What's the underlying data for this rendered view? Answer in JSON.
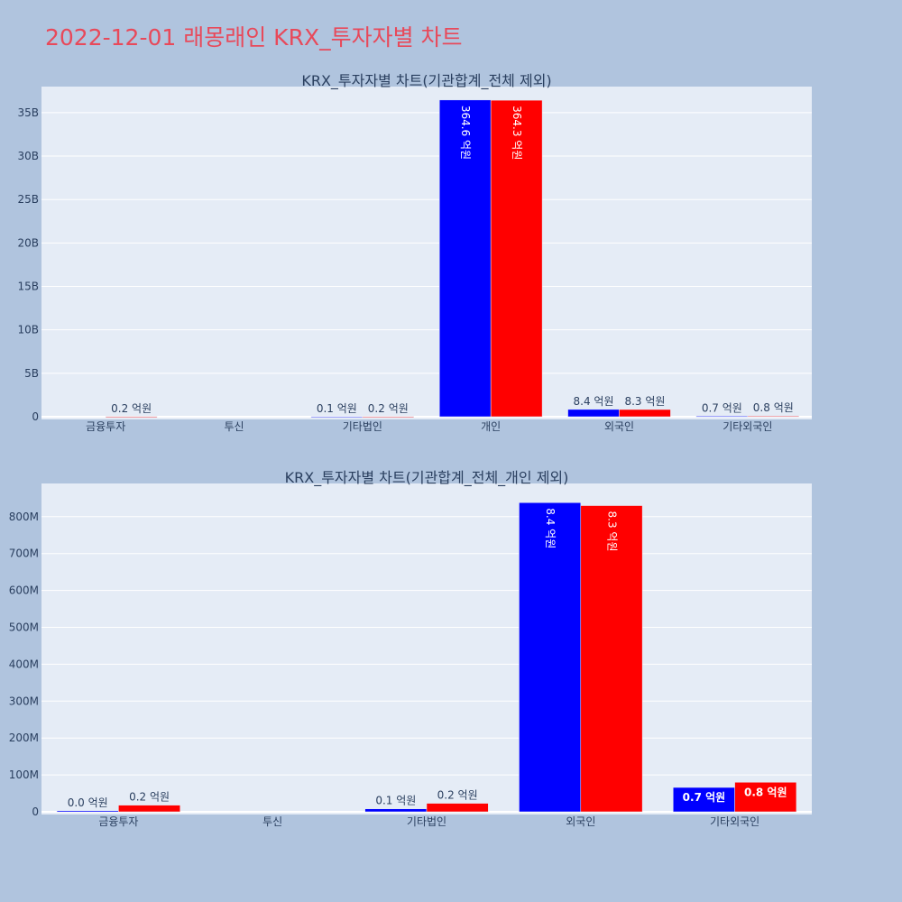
{
  "page": {
    "title": "2022-12-01 래몽래인 KRX_투자자별 차트"
  },
  "colors": {
    "series_a": "#0000ff",
    "series_b": "#ff0000",
    "plot_bg": "#e5ecf6",
    "text": "#2a3f5f"
  },
  "chart_data": [
    {
      "type": "bar",
      "title": "KRX_투자자별 차트(기관합계_전체 제외)",
      "categories": [
        "금융투자",
        "투신",
        "기타법인",
        "개인",
        "외국인",
        "기타외국인"
      ],
      "series": [
        {
          "color": "#0000ff",
          "values": [
            0,
            0,
            8000000,
            36460000000,
            840000000,
            68000000
          ],
          "labels": [
            "",
            "",
            "0.1 억원",
            "364.6 억원",
            "8.4 억원",
            "0.7 억원"
          ]
        },
        {
          "color": "#ff0000",
          "values": [
            18000000,
            0,
            23000000,
            36430000000,
            830000000,
            80000000
          ],
          "labels": [
            "0.2 억원",
            "",
            "0.2 억원",
            "364.3 억원",
            "8.3 억원",
            "0.8 억원"
          ]
        }
      ],
      "ylim": [
        0,
        38000000000
      ],
      "yticks": [
        0,
        5000000000,
        10000000000,
        15000000000,
        20000000000,
        25000000000,
        30000000000,
        35000000000
      ],
      "ytick_labels": [
        "0",
        "5B",
        "10B",
        "15B",
        "20B",
        "25B",
        "30B",
        "35B"
      ],
      "grid": true,
      "xlabel": "",
      "ylabel": ""
    },
    {
      "type": "bar",
      "title": "KRX_투자자별 차트(기관합계_전체_개인 제외)",
      "categories": [
        "금융투자",
        "투신",
        "기타법인",
        "외국인",
        "기타외국인"
      ],
      "series": [
        {
          "color": "#0000ff",
          "values": [
            3000000,
            0,
            8000000,
            838000000,
            66000000
          ],
          "labels": [
            "0.0 억원",
            "",
            "0.1 억원",
            "8.4 억원",
            "0.7 억원"
          ]
        },
        {
          "color": "#ff0000",
          "values": [
            18000000,
            0,
            23000000,
            830000000,
            80000000
          ],
          "labels": [
            "0.2 억원",
            "",
            "0.2 억원",
            "8.3 억원",
            "0.8 억원"
          ]
        }
      ],
      "ylim": [
        0,
        890000000
      ],
      "yticks": [
        0,
        100000000,
        200000000,
        300000000,
        400000000,
        500000000,
        600000000,
        700000000,
        800000000
      ],
      "ytick_labels": [
        "0",
        "100M",
        "200M",
        "300M",
        "400M",
        "500M",
        "600M",
        "700M",
        "800M"
      ],
      "grid": true,
      "xlabel": "",
      "ylabel": ""
    }
  ]
}
